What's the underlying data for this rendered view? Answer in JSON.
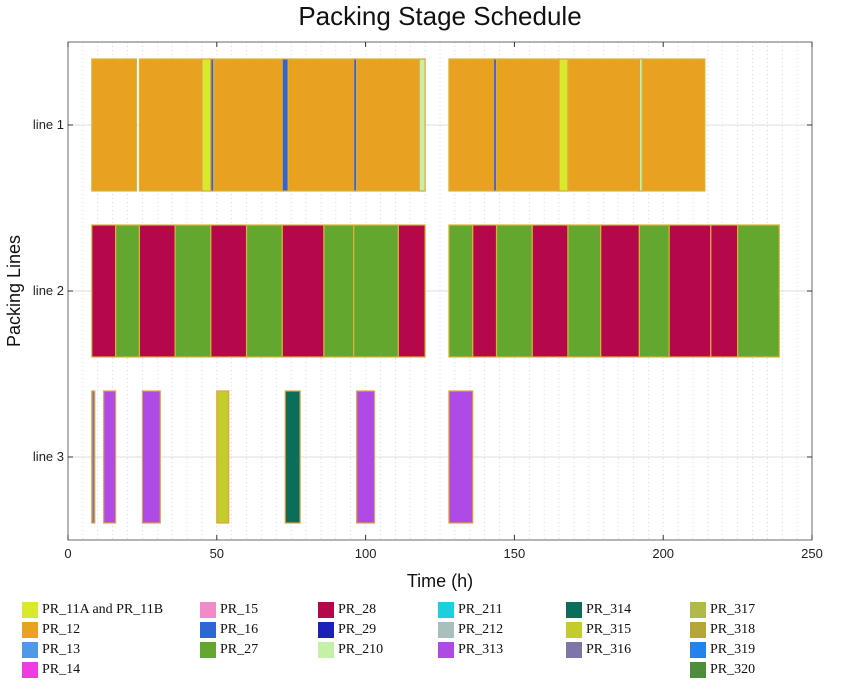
{
  "chart_data": {
    "type": "gantt",
    "title": "Packing Stage Schedule",
    "xlabel": "Time (h)",
    "ylabel": "Packing Lines",
    "xlim": [
      0,
      250
    ],
    "xticks": [
      0,
      50,
      100,
      150,
      200,
      250
    ],
    "grid": "dotted vertical",
    "lines": [
      "line 1",
      "line 2",
      "line 3"
    ],
    "tasks": [
      {
        "line": "line 1",
        "product": "PR_12",
        "start": 8,
        "end": 23
      },
      {
        "line": "line 1",
        "product": "PR_12",
        "start": 24,
        "end": 45
      },
      {
        "line": "line 1",
        "product": "PR_11A and PR_11B",
        "start": 45,
        "end": 48
      },
      {
        "line": "line 1",
        "product": "PR_16",
        "start": 48,
        "end": 49
      },
      {
        "line": "line 1",
        "product": "PR_12",
        "start": 49,
        "end": 72
      },
      {
        "line": "line 1",
        "product": "PR_16",
        "start": 72,
        "end": 74
      },
      {
        "line": "line 1",
        "product": "PR_12",
        "start": 74,
        "end": 96
      },
      {
        "line": "line 1",
        "product": "PR_16",
        "start": 96,
        "end": 97
      },
      {
        "line": "line 1",
        "product": "PR_12",
        "start": 97,
        "end": 118
      },
      {
        "line": "line 1",
        "product": "PR_210",
        "start": 118,
        "end": 120
      },
      {
        "line": "line 1",
        "product": "PR_12",
        "start": 128,
        "end": 143
      },
      {
        "line": "line 1",
        "product": "PR_16",
        "start": 143,
        "end": 144
      },
      {
        "line": "line 1",
        "product": "PR_12",
        "start": 144,
        "end": 165
      },
      {
        "line": "line 1",
        "product": "PR_11A and PR_11B",
        "start": 165,
        "end": 168
      },
      {
        "line": "line 1",
        "product": "PR_12",
        "start": 168,
        "end": 192
      },
      {
        "line": "line 1",
        "product": "PR_210",
        "start": 192,
        "end": 193
      },
      {
        "line": "line 1",
        "product": "PR_12",
        "start": 193,
        "end": 214
      },
      {
        "line": "line 2",
        "product": "PR_28",
        "start": 8,
        "end": 16
      },
      {
        "line": "line 2",
        "product": "PR_27",
        "start": 16,
        "end": 24
      },
      {
        "line": "line 2",
        "product": "PR_28",
        "start": 24,
        "end": 36
      },
      {
        "line": "line 2",
        "product": "PR_27",
        "start": 36,
        "end": 48
      },
      {
        "line": "line 2",
        "product": "PR_28",
        "start": 48,
        "end": 60
      },
      {
        "line": "line 2",
        "product": "PR_27",
        "start": 60,
        "end": 72
      },
      {
        "line": "line 2",
        "product": "PR_28",
        "start": 72,
        "end": 86
      },
      {
        "line": "line 2",
        "product": "PR_27",
        "start": 86,
        "end": 96
      },
      {
        "line": "line 2",
        "product": "PR_27",
        "start": 96,
        "end": 111
      },
      {
        "line": "line 2",
        "product": "PR_28",
        "start": 111,
        "end": 120
      },
      {
        "line": "line 2",
        "product": "PR_27",
        "start": 128,
        "end": 136
      },
      {
        "line": "line 2",
        "product": "PR_28",
        "start": 136,
        "end": 144
      },
      {
        "line": "line 2",
        "product": "PR_27",
        "start": 144,
        "end": 156
      },
      {
        "line": "line 2",
        "product": "PR_28",
        "start": 156,
        "end": 168
      },
      {
        "line": "line 2",
        "product": "PR_27",
        "start": 168,
        "end": 179
      },
      {
        "line": "line 2",
        "product": "PR_28",
        "start": 179,
        "end": 192
      },
      {
        "line": "line 2",
        "product": "PR_27",
        "start": 192,
        "end": 202
      },
      {
        "line": "line 2",
        "product": "PR_28",
        "start": 202,
        "end": 216
      },
      {
        "line": "line 2",
        "product": "PR_28",
        "start": 216,
        "end": 225
      },
      {
        "line": "line 2",
        "product": "PR_27",
        "start": 225,
        "end": 239
      },
      {
        "line": "line 3",
        "product": "PR_316",
        "start": 8,
        "end": 9
      },
      {
        "line": "line 3",
        "product": "PR_313",
        "start": 12,
        "end": 16
      },
      {
        "line": "line 3",
        "product": "PR_313",
        "start": 25,
        "end": 31
      },
      {
        "line": "line 3",
        "product": "PR_315",
        "start": 50,
        "end": 54
      },
      {
        "line": "line 3",
        "product": "PR_314",
        "start": 73,
        "end": 78
      },
      {
        "line": "line 3",
        "product": "PR_313",
        "start": 97,
        "end": 103
      },
      {
        "line": "line 3",
        "product": "PR_313",
        "start": 128,
        "end": 136
      }
    ],
    "legend": [
      {
        "label": "PR_11A and PR_11B",
        "color": "#d9ea2c"
      },
      {
        "label": "PR_12",
        "color": "#e8a21f"
      },
      {
        "label": "PR_13",
        "color": "#4f9ae8"
      },
      {
        "label": "PR_14",
        "color": "#f03ae3"
      },
      {
        "label": "PR_15",
        "color": "#f28ac8"
      },
      {
        "label": "PR_16",
        "color": "#2f66d6"
      },
      {
        "label": "PR_27",
        "color": "#63a72f"
      },
      {
        "label": "PR_28",
        "color": "#b4084a"
      },
      {
        "label": "PR_29",
        "color": "#1a22b8"
      },
      {
        "label": "PR_210",
        "color": "#c4f0a8"
      },
      {
        "label": "PR_211",
        "color": "#1ad0e0"
      },
      {
        "label": "PR_212",
        "color": "#a8bfbc"
      },
      {
        "label": "PR_313",
        "color": "#b04ae6"
      },
      {
        "label": "PR_314",
        "color": "#0b6e5a"
      },
      {
        "label": "PR_315",
        "color": "#c4cc2c"
      },
      {
        "label": "PR_316",
        "color": "#7d77a8"
      },
      {
        "label": "PR_317",
        "color": "#b0ba48"
      },
      {
        "label": "PR_318",
        "color": "#b5a637"
      },
      {
        "label": "PR_319",
        "color": "#2482e8"
      },
      {
        "label": "PR_320",
        "color": "#4e8e3a"
      }
    ]
  }
}
